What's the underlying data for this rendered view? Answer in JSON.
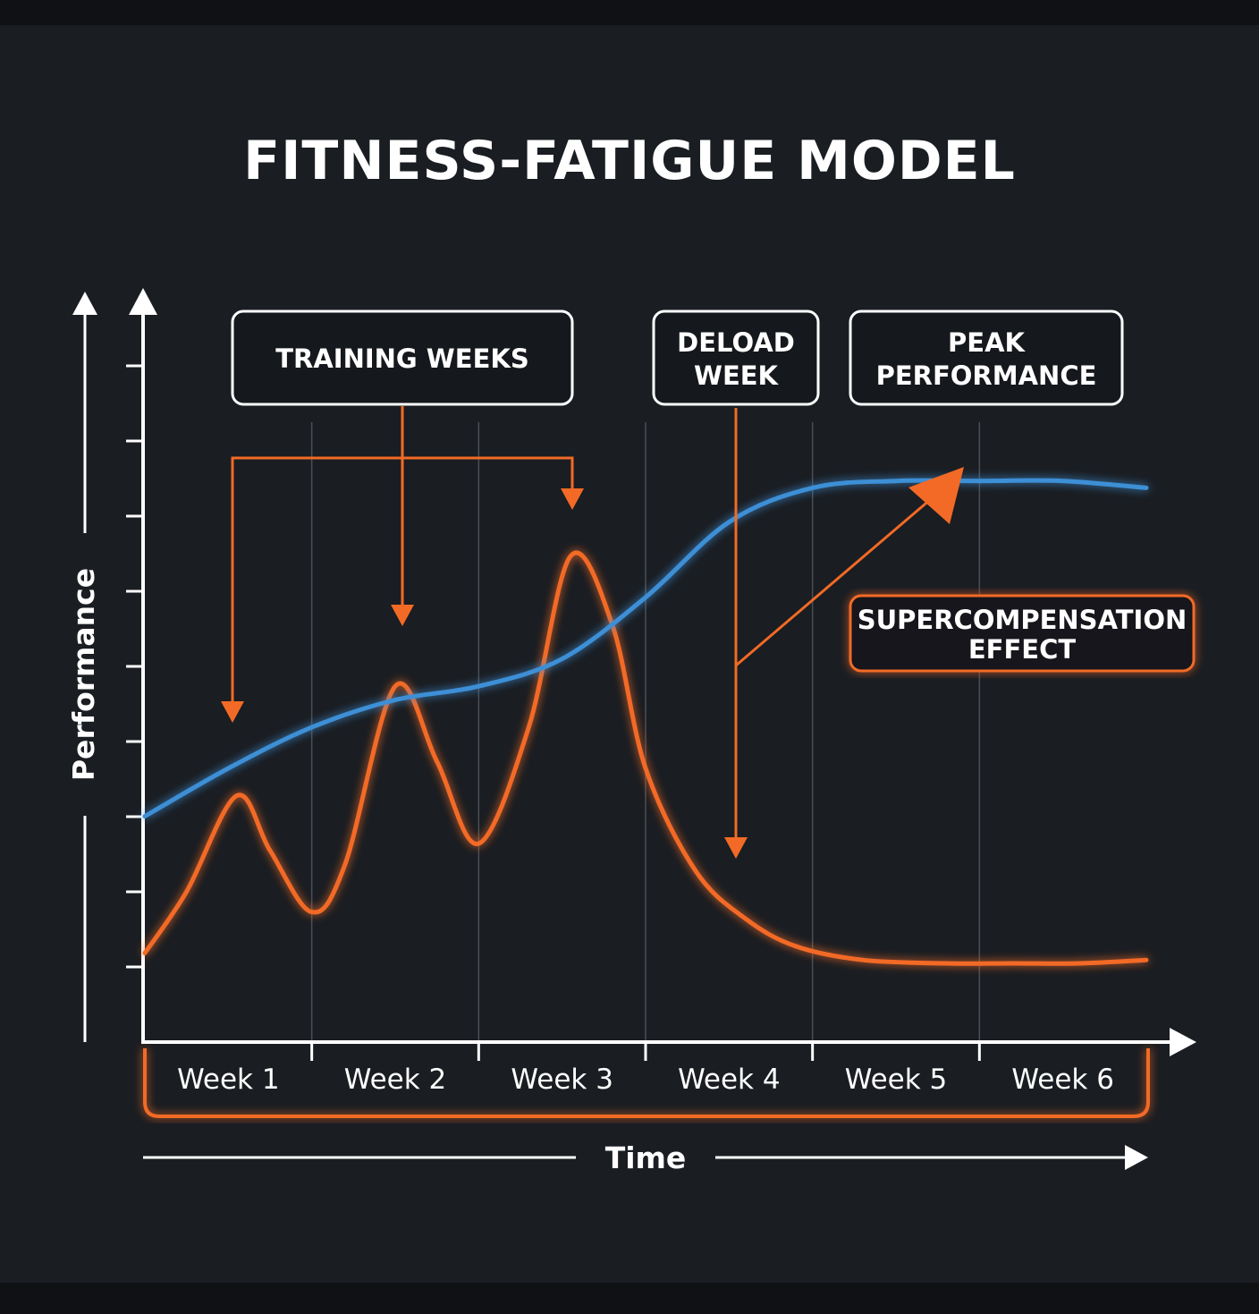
{
  "colors": {
    "background": "#1a1d22",
    "fitness": "#3e8fd6",
    "fatigue": "#f26a25",
    "axis": "#ffffff",
    "grid": "#4a4e55"
  },
  "chart_data": {
    "type": "line",
    "title": "FITNESS-FATIGUE MODEL",
    "xlabel": "Time",
    "ylabel": "Performance",
    "categories": [
      "Week 1",
      "Week 2",
      "Week 3",
      "Week 4",
      "Week 5",
      "Week 6"
    ],
    "xlim": [
      0,
      6
    ],
    "ylim": [
      0,
      10
    ],
    "grid": "vertical",
    "series": [
      {
        "color": "#3e8fd6",
        "x": [
          0,
          0.5,
          1,
          1.5,
          2,
          2.5,
          3,
          3.5,
          4,
          4.5,
          5,
          5.5,
          6
        ],
        "y": [
          3.3,
          4.0,
          4.6,
          5.0,
          5.2,
          5.6,
          6.5,
          7.6,
          8.1,
          8.2,
          8.2,
          8.2,
          8.1
        ]
      },
      {
        "color": "#f26a25",
        "x": [
          0,
          0.25,
          0.55,
          0.75,
          1.0,
          1.2,
          1.5,
          1.75,
          2.0,
          2.3,
          2.55,
          2.8,
          3.0,
          3.3,
          3.6,
          3.9,
          4.3,
          4.8,
          5.2,
          5.6,
          6.0
        ],
        "y": [
          1.3,
          2.2,
          3.6,
          2.8,
          1.9,
          2.6,
          5.2,
          4.1,
          2.9,
          4.6,
          7.1,
          6.1,
          4.0,
          2.5,
          1.8,
          1.4,
          1.2,
          1.15,
          1.15,
          1.15,
          1.2
        ]
      }
    ],
    "annotations": {
      "training_weeks": "TRAINING WEEKS",
      "deload_week": [
        "DELOAD",
        "WEEK"
      ],
      "peak_performance": [
        "PEAK",
        "PERFORMANCE"
      ],
      "supercompensation": [
        "SUPERCOMPENSATION",
        "EFFECT"
      ]
    }
  }
}
